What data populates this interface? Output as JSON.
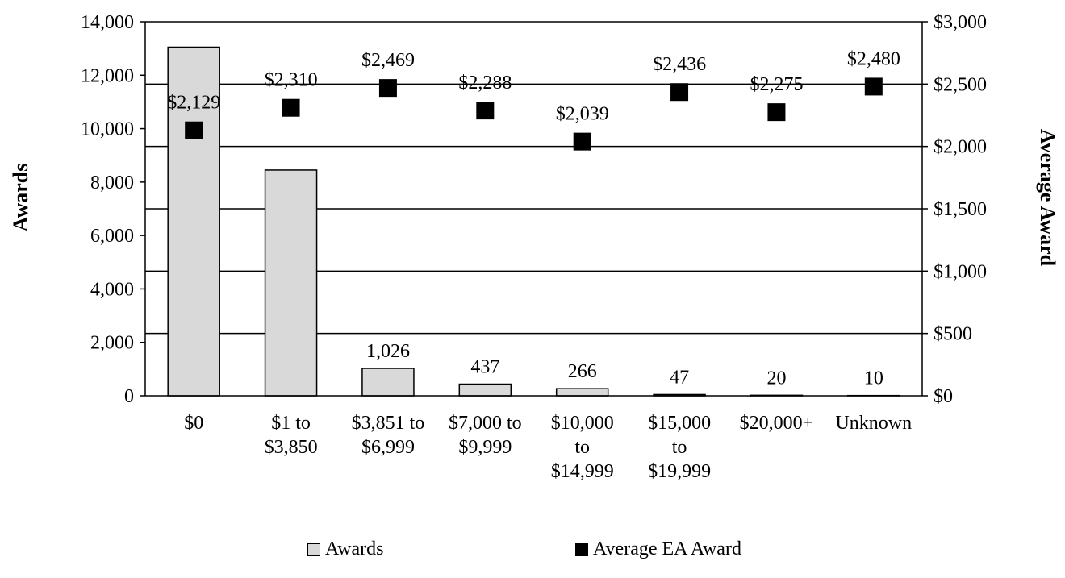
{
  "chart_data": {
    "type": "bar",
    "categories": [
      [
        "$0"
      ],
      [
        "$1 to",
        "$3,850"
      ],
      [
        "$3,851 to",
        "$6,999"
      ],
      [
        "$7,000 to",
        "$9,999"
      ],
      [
        "$10,000",
        "to",
        "$14,999"
      ],
      [
        "$15,000",
        "to",
        "$19,999"
      ],
      [
        "$20,000+"
      ],
      [
        "Unknown"
      ]
    ],
    "series": [
      {
        "name": "Awards",
        "type": "bar",
        "axis": "left",
        "color": "#d9d9d9",
        "values": [
          13050,
          8450,
          1026,
          437,
          266,
          47,
          20,
          10
        ],
        "data_labels": [
          "",
          "",
          "1,026",
          "437",
          "266",
          "47",
          "20",
          "10"
        ]
      },
      {
        "name": "Average EA Award",
        "type": "scatter",
        "axis": "right",
        "color": "#000000",
        "values": [
          2129,
          2310,
          2469,
          2288,
          2039,
          2436,
          2275,
          2480
        ],
        "data_labels": [
          "$2,129",
          "$2,310",
          "$2,469",
          "$2,288",
          "$2,039",
          "$2,436",
          "$2,275",
          "$2,480"
        ]
      }
    ],
    "ylabel": "Awards",
    "y2label": "Average Award",
    "ylim": [
      0,
      14000
    ],
    "y2lim": [
      0,
      3000
    ],
    "yticks": [
      "0",
      "2,000",
      "4,000",
      "6,000",
      "8,000",
      "10,000",
      "12,000",
      "14,000"
    ],
    "y2ticks": [
      "$0",
      "$500",
      "$1,000",
      "$1,500",
      "$2,000",
      "$2,500",
      "$3,000"
    ],
    "grid": true,
    "legend_position": "bottom"
  }
}
